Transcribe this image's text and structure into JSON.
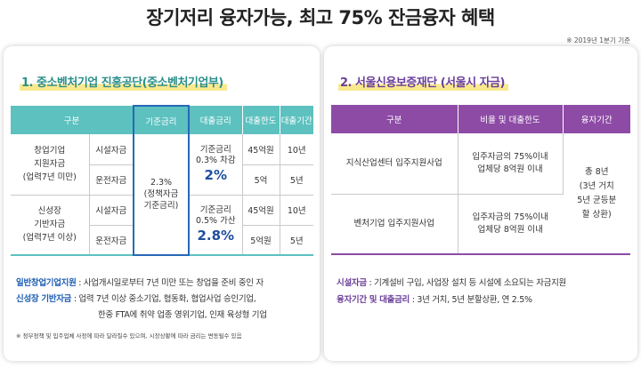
{
  "header": {
    "title": "장기저리 융자가능, 최고 75% 잔금융자 혜택",
    "date_note": "※ 2019년 1분기 기준"
  },
  "left": {
    "title": "1. 중소벤처기업 진흥공단(중소벤처기업부)",
    "headers": [
      "구분",
      "기준금리",
      "대출금리",
      "대출한도",
      "대출기간"
    ],
    "group1": {
      "name": [
        "창업기업",
        "지원자금",
        "(업력7년 미만)"
      ],
      "row_a": {
        "type": "시설자금",
        "limit": "45억원",
        "period": "10년"
      },
      "row_b": {
        "type": "운전자금",
        "limit": "5억",
        "period": "5년"
      },
      "loan_rate": [
        "기준금리",
        "0.3% 차감"
      ],
      "loan_rate_big": "2%"
    },
    "group2": {
      "name": [
        "신성장",
        "기반자금",
        "(업력7년 이상)"
      ],
      "row_a": {
        "type": "시설자금",
        "limit": "45억원",
        "period": "10년"
      },
      "row_b": {
        "type": "운전자금",
        "limit": "5억원",
        "period": "5년"
      },
      "loan_rate": [
        "기준금리",
        "0.5% 가산"
      ],
      "loan_rate_big": "2.8%"
    },
    "base_rate": [
      "2.3%",
      "(정책자금",
      "기준금리)"
    ],
    "footnotes": [
      {
        "key": "일반창업기업지원",
        "text": " : 사업개시일로부터 7년 미만 또는 창업을 준비 중인 자"
      },
      {
        "key": "신성장 기반자금",
        "text": " : 업력 7년 이상 중소기업, 협동화, 협업사업 승인기업,"
      },
      {
        "key": "",
        "text": "한중 FTA에 취약 업종 영위기업, 인재 육성형 기업"
      }
    ],
    "disclaimer": "※ 정부정책 및 입주업체 사정에 따라 달라질수 있으며, 시장상황에 따라 금리는 변동될수 있음"
  },
  "right": {
    "title": "2. 서울신용보증재단 (서울시 자금)",
    "headers": [
      "구분",
      "비율 및 대출한도",
      "융자기간"
    ],
    "rows": [
      {
        "type": "지식산업센터 입주지원사업",
        "ratio": [
          "입주자금의 75%이내",
          "업체당 8억원 이내"
        ]
      },
      {
        "type": "벤처기업 입주지원사업",
        "ratio": [
          "입주자금의 75%이내",
          "업체당 8억원 이내"
        ]
      }
    ],
    "period": [
      "총 8년",
      "(3년 거치",
      "5년 균등분",
      "할 상환)"
    ],
    "footnotes": [
      {
        "key": "시설자금",
        "text": " : 기계설비 구입, 사업장 설치 등 시설에 소요되는 자금지원"
      },
      {
        "key": "융자기간 및 대출금리",
        "text": " : 3년 거치, 5년 분할상환, 연 2.5%"
      }
    ]
  },
  "colors": {
    "teal_header": "#5cc1bf",
    "purple_header": "#8d4ba6",
    "highlight_border": "#2768b8",
    "rate_text": "#1f4e9e"
  }
}
